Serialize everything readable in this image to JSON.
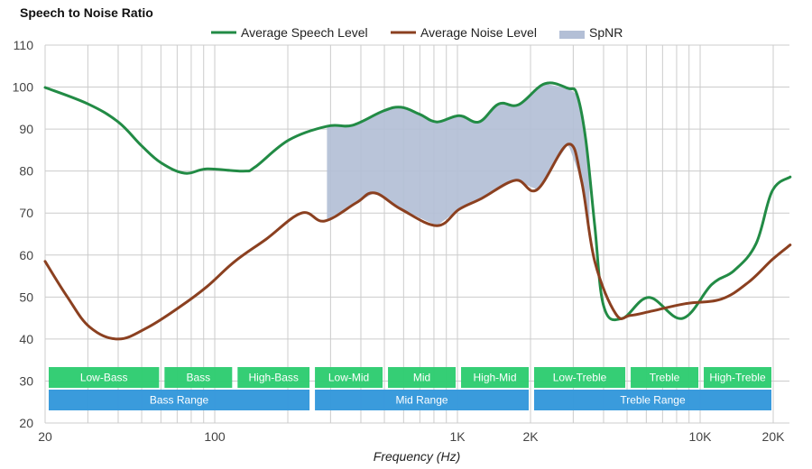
{
  "chart_data": {
    "type": "line",
    "title": "Speech to Noise Ratio",
    "xlabel": "Frequency (Hz)",
    "ylabel": "",
    "xscale": "log",
    "xlim": [
      20,
      23500
    ],
    "ylim": [
      20,
      110
    ],
    "grid": true,
    "legend_position": "top-center",
    "y_ticks": [
      20,
      30,
      40,
      50,
      60,
      70,
      80,
      90,
      100,
      110
    ],
    "y_tick_labels": [
      "20",
      "30",
      "40",
      "50",
      "60",
      "70",
      "80",
      "90",
      "100",
      "110"
    ],
    "x_ticks": [
      20,
      100,
      1000,
      2000,
      10000,
      20000
    ],
    "x_tick_labels": [
      "20",
      "100",
      "1K",
      "2K",
      "10K",
      "20K"
    ],
    "x_grid": [
      20,
      30,
      40,
      50,
      60,
      70,
      80,
      90,
      100,
      200,
      300,
      400,
      500,
      600,
      700,
      800,
      900,
      1000,
      2000,
      3000,
      4000,
      5000,
      6000,
      7000,
      8000,
      9000,
      10000,
      20000
    ],
    "legend": [
      {
        "label": "Average Speech Level",
        "type": "line",
        "color": "#228b45"
      },
      {
        "label": "Average Noise Level",
        "type": "line",
        "color": "#8b4020"
      },
      {
        "label": "SpNR",
        "type": "area",
        "color": "#b3bfd6"
      }
    ],
    "series": [
      {
        "name": "Average Speech Level",
        "color": "#228b45",
        "x": [
          20,
          30,
          40,
          50,
          60,
          75,
          93,
          131,
          147,
          202,
          291,
          369,
          494,
          586,
          700,
          823,
          1017,
          1226,
          1480,
          1785,
          2290,
          2860,
          3110,
          3380,
          3680,
          4010,
          4770,
          6150,
          8430,
          11170,
          13800,
          17000,
          19800,
          23500
        ],
        "y": [
          99.9,
          96,
          91.7,
          86,
          82,
          79.5,
          80.5,
          80,
          81,
          87.4,
          90.7,
          90.9,
          94.3,
          95.2,
          93.5,
          91.7,
          93.2,
          91.7,
          96,
          95.8,
          100.8,
          99.7,
          98.2,
          87.4,
          67,
          47.7,
          44.9,
          49.9,
          44.9,
          53,
          56.3,
          62.7,
          75.2,
          78.6
        ]
      },
      {
        "name": "Average Noise Level",
        "color": "#8b4020",
        "x": [
          20,
          24.7,
          30.6,
          40,
          53,
          72,
          93,
          121,
          163,
          228,
          283,
          382,
          455,
          586,
          823,
          1017,
          1260,
          1735,
          2130,
          2860,
          3240,
          3680,
          4490,
          5150,
          6380,
          8650,
          12200,
          15800,
          19800,
          23500
        ],
        "y": [
          58.5,
          50,
          42.8,
          40,
          42.8,
          47.7,
          52.5,
          58.5,
          63.8,
          70,
          68.1,
          72.4,
          74.8,
          70.9,
          67,
          70.9,
          73.5,
          77.8,
          75.6,
          86.4,
          77.8,
          58.5,
          46,
          45.6,
          46.7,
          48.4,
          49.5,
          53.5,
          58.9,
          62.4
        ]
      }
    ],
    "spnr_area": {
      "name": "SpNR",
      "x_start": 290,
      "x_end": 3500,
      "color": "#b3bfd6"
    },
    "bands": {
      "fine": [
        {
          "label": "Low-Bass",
          "from": 20,
          "to": 60
        },
        {
          "label": "Bass",
          "from": 60,
          "to": 120
        },
        {
          "label": "High-Bass",
          "from": 120,
          "to": 250
        },
        {
          "label": "Low-Mid",
          "from": 250,
          "to": 500
        },
        {
          "label": "Mid",
          "from": 500,
          "to": 1000
        },
        {
          "label": "High-Mid",
          "from": 1000,
          "to": 2000
        },
        {
          "label": "Low-Treble",
          "from": 2000,
          "to": 5000
        },
        {
          "label": "Treble",
          "from": 5000,
          "to": 10000
        },
        {
          "label": "High-Treble",
          "from": 10000,
          "to": 20000
        }
      ],
      "coarse": [
        {
          "label": "Bass Range",
          "from": 20,
          "to": 250
        },
        {
          "label": "Mid Range",
          "from": 250,
          "to": 2000
        },
        {
          "label": "Treble Range",
          "from": 2000,
          "to": 20000
        }
      ],
      "fine_color": "#2ecc71",
      "coarse_color": "#3498db"
    }
  }
}
